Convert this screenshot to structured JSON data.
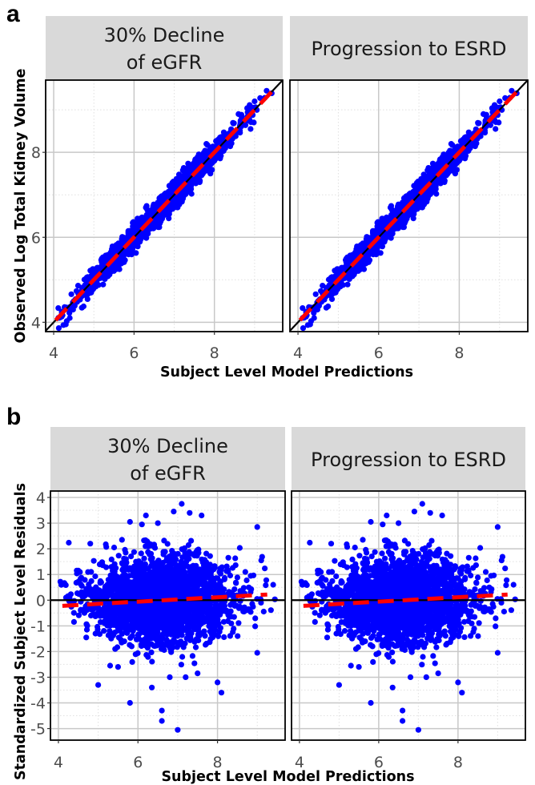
{
  "panels": {
    "a": {
      "letter": "a"
    },
    "b": {
      "letter": "b"
    }
  },
  "chart_data": [
    {
      "id": "a",
      "type": "scatter",
      "title": "",
      "facets": [
        {
          "label_lines": [
            "30% Decline",
            "of eGFR"
          ]
        },
        {
          "label_lines": [
            "Progression to ESRD"
          ]
        }
      ],
      "xlabel": "Subject Level Model Predictions",
      "ylabel": "Observed Log Total Kidney Volume",
      "xlim": [
        3.8,
        9.7
      ],
      "ylim": [
        3.78,
        9.7
      ],
      "xticks": [
        4,
        6,
        8
      ],
      "yticks": [
        4,
        6,
        8
      ],
      "xtick_labels": [
        "4",
        "6",
        "8"
      ],
      "ytick_labels": [
        "4",
        "6",
        "8"
      ],
      "grid": true,
      "point_color": "#0000ff",
      "reference_line": {
        "type": "identity",
        "color": "#000000",
        "style": "solid"
      },
      "fit_line": {
        "color": "#ff0000",
        "style": "dashed",
        "x": [
          4.05,
          9.5
        ],
        "y": [
          4.05,
          9.5
        ]
      },
      "cloud": {
        "n": 2300,
        "x_mean": 6.6,
        "x_sd": 0.95,
        "x_range": [
          4.05,
          9.5
        ],
        "y_resid_sd": 0.13
      },
      "outliers": [
        [
          4.2,
          4.25
        ],
        [
          4.4,
          4.1
        ],
        [
          9.3,
          9.45
        ],
        [
          8.6,
          8.9
        ],
        [
          8.9,
          8.55
        ],
        [
          7.8,
          8.2
        ],
        [
          7.9,
          7.5
        ],
        [
          5.2,
          5.5
        ],
        [
          9.0,
          9.2
        ]
      ]
    },
    {
      "id": "b",
      "type": "scatter",
      "title": "",
      "facets": [
        {
          "label_lines": [
            "30% Decline",
            "of eGFR"
          ]
        },
        {
          "label_lines": [
            "Progression to ESRD"
          ]
        }
      ],
      "xlabel": "Subject Level Model Predictions",
      "ylabel": "Standardized Subject Level Residuals",
      "xlim": [
        3.8,
        9.7
      ],
      "ylim": [
        -5.45,
        4.25
      ],
      "xticks": [
        4,
        6,
        8
      ],
      "yticks": [
        -5,
        -4,
        -3,
        -2,
        -1,
        0,
        1,
        2,
        3,
        4
      ],
      "xtick_labels": [
        "4",
        "6",
        "8"
      ],
      "ytick_labels": [
        "-5",
        "-4",
        "-3",
        "-2",
        "-1",
        "0",
        "1",
        "2",
        "3",
        "4"
      ],
      "grid": true,
      "point_color": "#0000ff",
      "reference_line": {
        "type": "horizontal",
        "y": 0,
        "color": "#000000",
        "style": "solid"
      },
      "fit_line": {
        "color": "#ff0000",
        "style": "dashed",
        "x": [
          4.1,
          9.25
        ],
        "y": [
          -0.22,
          0.22
        ]
      },
      "cloud": {
        "n": 2300,
        "x_mean": 6.6,
        "x_sd": 0.95,
        "x_range": [
          4.05,
          9.5
        ],
        "y_sd": 0.85
      },
      "outliers": [
        [
          4.05,
          0.72
        ],
        [
          4.45,
          0.68
        ],
        [
          4.5,
          1.15
        ],
        [
          4.7,
          -1.45
        ],
        [
          4.8,
          2.2
        ],
        [
          5.4,
          2.05
        ],
        [
          5.0,
          -3.3
        ],
        [
          5.5,
          -2.6
        ],
        [
          5.8,
          -4.0
        ],
        [
          5.8,
          3.05
        ],
        [
          6.2,
          3.3
        ],
        [
          6.1,
          2.95
        ],
        [
          6.5,
          3.0
        ],
        [
          6.9,
          3.45
        ],
        [
          7.1,
          3.75
        ],
        [
          7.3,
          3.4
        ],
        [
          7.5,
          -2.85
        ],
        [
          7.2,
          -3.0
        ],
        [
          7.6,
          3.3
        ],
        [
          8.1,
          -3.6
        ],
        [
          8.0,
          -3.2
        ],
        [
          9.0,
          2.85
        ],
        [
          9.0,
          -2.05
        ],
        [
          9.4,
          0.6
        ],
        [
          6.6,
          -4.3
        ],
        [
          6.6,
          -4.7
        ],
        [
          7.0,
          -5.05
        ],
        [
          6.35,
          -3.4
        ],
        [
          6.8,
          -3.0
        ],
        [
          5.3,
          -2.55
        ],
        [
          5.7,
          1.6
        ],
        [
          8.7,
          1.1
        ],
        [
          9.1,
          1.55
        ]
      ]
    }
  ]
}
